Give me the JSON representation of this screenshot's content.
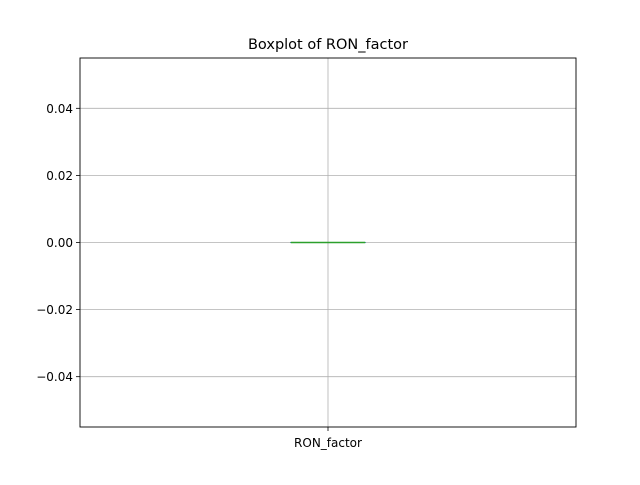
{
  "chart_data": {
    "type": "box",
    "title": "Boxplot of RON_factor",
    "xlabel": "",
    "ylabel": "",
    "categories": [
      "RON_factor"
    ],
    "boxes": [
      {
        "name": "RON_factor",
        "min": 0.0,
        "q1": 0.0,
        "median": 0.0,
        "q3": 0.0,
        "max": 0.0
      }
    ],
    "ylim": [
      -0.055,
      0.055
    ],
    "yticks": [
      -0.04,
      -0.02,
      0.0,
      0.02,
      0.04
    ],
    "ytick_labels": [
      "−0.04",
      "−0.02",
      "0.00",
      "0.02",
      "0.04"
    ],
    "grid": true,
    "colors": {
      "box": "#1f77b4",
      "median": "#2ca02c",
      "whisker": "#000000",
      "grid": "#b0b0b0"
    }
  }
}
